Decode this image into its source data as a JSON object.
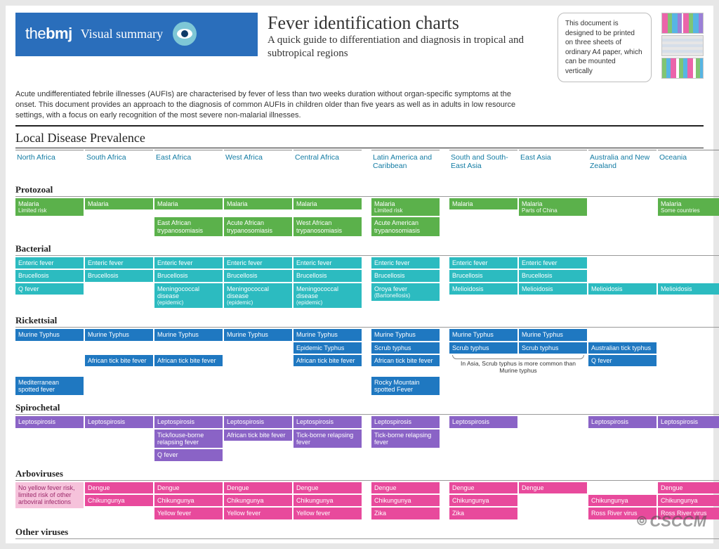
{
  "colors": {
    "brand_blue": "#2a6ebb",
    "header_text": "#127ba3",
    "protozoal": "#5bb14b",
    "bacterial": "#2cbbc0",
    "rickettsial": "#1f78c1",
    "spirochetal": "#8a63c6",
    "arboviruses": "#e84a9c",
    "note_pink": "#f6c2db",
    "background": "#ffffff",
    "page_bg": "#e7e7e7"
  },
  "header": {
    "logo_html": "the<b>bmj</b>",
    "visual_summary": "Visual summary",
    "title": "Fever identification charts",
    "subtitle": "A quick guide to differentiation and diagnosis in tropical and subtropical regions",
    "print_note": "This document is designed to be printed on three sheets of ordinary A4 paper, which can be mounted vertically"
  },
  "intro": "Acute undifferentiated febrile illnesses (AUFIs) are characterised by fever of less than two weeks duration without organ-specific symptoms at the onset. This document provides an approach to the diagnosis of common AUFIs in children older than five years as well as in adults in low resource settings, with a focus on early recognition of the most severe non-malarial illnesses.",
  "section_title": "Local Disease Prevalence",
  "columns": [
    "North Africa",
    "South Africa",
    "East Africa",
    "West Africa",
    "Central Africa",
    "Latin America and Caribbean",
    "South and South-East Asia",
    "East Asia",
    "Australia and New Zealand",
    "Oceania"
  ],
  "scrub_note": "In Asia, Scrub typhus is more common than Murine typhus",
  "watermark": "CSCCM",
  "categories": [
    {
      "name": "Protozoal",
      "color_key": "protozoal",
      "rows": [
        [
          {
            "t": "Malaria",
            "s": "Limited risk"
          },
          {
            "t": "Malaria"
          },
          {
            "t": "Malaria"
          },
          {
            "t": "Malaria"
          },
          {
            "t": "Malaria"
          },
          {
            "t": "Malaria",
            "s": "Limited risk"
          },
          {
            "t": "Malaria"
          },
          {
            "t": "Malaria",
            "s": "Parts of China"
          },
          {
            "empty": true
          },
          {
            "t": "Malaria",
            "s": "Some countries"
          }
        ],
        [
          {
            "empty": true
          },
          {
            "empty": true
          },
          {
            "t": "East African trypanosomiasis"
          },
          {
            "t": "Acute African trypanosomiasis"
          },
          {
            "t": "West African trypanosomiasis"
          },
          {
            "t": "Acute American trypanosomiasis"
          },
          {
            "empty": true
          },
          {
            "empty": true
          },
          {
            "empty": true
          },
          {
            "empty": true
          }
        ]
      ]
    },
    {
      "name": "Bacterial",
      "color_key": "bacterial",
      "rows": [
        [
          {
            "t": "Enteric fever"
          },
          {
            "t": "Enteric fever"
          },
          {
            "t": "Enteric fever"
          },
          {
            "t": "Enteric fever"
          },
          {
            "t": "Enteric fever"
          },
          {
            "t": "Enteric fever"
          },
          {
            "t": "Enteric fever"
          },
          {
            "t": "Enteric fever"
          },
          {
            "empty": true
          },
          {
            "empty": true
          }
        ],
        [
          {
            "t": "Brucellosis"
          },
          {
            "t": "Brucellosis"
          },
          {
            "t": "Brucellosis"
          },
          {
            "t": "Brucellosis"
          },
          {
            "t": "Brucellosis"
          },
          {
            "t": "Brucellosis"
          },
          {
            "t": "Brucellosis"
          },
          {
            "t": "Brucellosis"
          },
          {
            "empty": true
          },
          {
            "empty": true
          }
        ],
        [
          {
            "t": "Q fever"
          },
          {
            "empty": true
          },
          {
            "t": "Meningococcal disease",
            "s": "(epidemic)"
          },
          {
            "t": "Meningococcal disease",
            "s": "(epidemic)"
          },
          {
            "t": "Meningococcal disease",
            "s": "(epidemic)"
          },
          {
            "t": "Oroya fever",
            "s": "(Bartonellosis)"
          },
          {
            "t": "Melioidosis"
          },
          {
            "t": "Melioidosis"
          },
          {
            "t": "Melioidosis"
          },
          {
            "t": "Melioidosis"
          }
        ]
      ]
    },
    {
      "name": "Rickettsial",
      "color_key": "rickettsial",
      "rows": [
        [
          {
            "t": "Murine Typhus"
          },
          {
            "t": "Murine Typhus"
          },
          {
            "t": "Murine Typhus"
          },
          {
            "t": "Murine Typhus"
          },
          {
            "t": "Murine Typhus"
          },
          {
            "t": "Murine Typhus"
          },
          {
            "t": "Murine Typhus"
          },
          {
            "t": "Murine Typhus"
          },
          {
            "empty": true
          },
          {
            "empty": true
          }
        ],
        [
          {
            "empty": true
          },
          {
            "empty": true
          },
          {
            "empty": true
          },
          {
            "empty": true
          },
          {
            "t": "Epidemic Typhus"
          },
          {
            "t": "Scrub typhus"
          },
          {
            "t": "Scrub typhus"
          },
          {
            "t": "Scrub typhus"
          },
          {
            "t": "Australian tick typhus"
          },
          {
            "empty": true
          }
        ],
        [
          {
            "empty": true
          },
          {
            "t": "African tick bite fever"
          },
          {
            "t": "African tick bite fever"
          },
          {
            "empty": true
          },
          {
            "t": "African tick bite fever"
          },
          {
            "t": "African tick bite fever"
          },
          {
            "bracket_note": true
          },
          {
            "skip": true
          },
          {
            "t": "Q fever"
          },
          {
            "empty": true
          }
        ],
        [
          {
            "t": "Mediterranean spotted fever"
          },
          {
            "empty": true
          },
          {
            "empty": true
          },
          {
            "empty": true
          },
          {
            "empty": true
          },
          {
            "t": "Rocky Mountain spotted Fever"
          },
          {
            "empty": true
          },
          {
            "empty": true
          },
          {
            "empty": true
          },
          {
            "empty": true
          }
        ]
      ]
    },
    {
      "name": "Spirochetal",
      "color_key": "spirochetal",
      "rows": [
        [
          {
            "t": "Leptospirosis"
          },
          {
            "t": "Leptospirosis"
          },
          {
            "t": "Leptospirosis"
          },
          {
            "t": "Leptospirosis"
          },
          {
            "t": "Leptospirosis"
          },
          {
            "t": "Leptospirosis"
          },
          {
            "t": "Leptospirosis"
          },
          {
            "empty": true
          },
          {
            "t": "Leptospirosis"
          },
          {
            "t": "Leptospirosis"
          }
        ],
        [
          {
            "empty": true
          },
          {
            "empty": true
          },
          {
            "t": "Tick/louse-borne relapsing fever"
          },
          {
            "t": "African tick bite fever"
          },
          {
            "t": "Tick-borne relapsing fever"
          },
          {
            "t": "Tick-borne relapsing fever"
          },
          {
            "empty": true
          },
          {
            "empty": true
          },
          {
            "empty": true
          },
          {
            "empty": true
          }
        ],
        [
          {
            "empty": true
          },
          {
            "empty": true
          },
          {
            "t": "Q fever"
          },
          {
            "empty": true
          },
          {
            "empty": true
          },
          {
            "empty": true
          },
          {
            "empty": true
          },
          {
            "empty": true
          },
          {
            "empty": true
          },
          {
            "empty": true
          }
        ]
      ]
    },
    {
      "name": "Arboviruses",
      "color_key": "arboviruses",
      "rows": [
        [
          {
            "t": "No yellow fever risk, limited risk of other arboviral infections",
            "color_override": "note_pink",
            "text_dark": true,
            "rowspan": 3
          },
          {
            "t": "Dengue"
          },
          {
            "t": "Dengue"
          },
          {
            "t": "Dengue"
          },
          {
            "t": "Dengue"
          },
          {
            "t": "Dengue"
          },
          {
            "t": "Dengue"
          },
          {
            "t": "Dengue"
          },
          {
            "empty": true
          },
          {
            "t": "Dengue"
          }
        ],
        [
          {
            "skip": true
          },
          {
            "t": "Chikungunya"
          },
          {
            "t": "Chikungunya"
          },
          {
            "t": "Chikungunya"
          },
          {
            "t": "Chikungunya"
          },
          {
            "t": "Chikungunya"
          },
          {
            "t": "Chikungunya"
          },
          {
            "empty": true
          },
          {
            "t": "Chikungunya"
          },
          {
            "t": "Chikungunya"
          }
        ],
        [
          {
            "skip": true
          },
          {
            "empty": true
          },
          {
            "t": "Yellow fever"
          },
          {
            "t": "Yellow fever"
          },
          {
            "t": "Yellow fever"
          },
          {
            "t": "Zika"
          },
          {
            "t": "Zika"
          },
          {
            "empty": true
          },
          {
            "t": "Ross River virus"
          },
          {
            "t": "Ross River virus"
          }
        ]
      ]
    },
    {
      "name": "Other viruses",
      "color_key": "arboviruses",
      "rows": []
    }
  ]
}
